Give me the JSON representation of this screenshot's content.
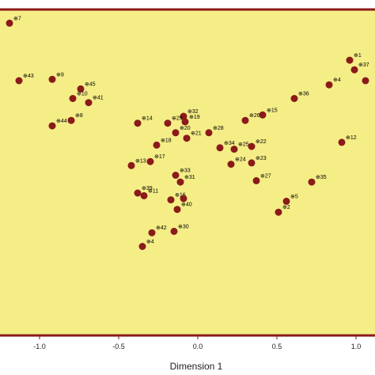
{
  "colors": {
    "plot_background": "#f5ee87",
    "border": "#8b1a1a",
    "marker": "#8b1a1a",
    "text": "#222222"
  },
  "chart_data": {
    "type": "scatter",
    "xlabel": "Dimension 1",
    "ylabel": "",
    "xlim": [
      -1.25,
      1.12
    ],
    "ylim": [
      -1.28,
      1.1
    ],
    "x_ticks": [
      -1.0,
      -0.5,
      0.0,
      0.5,
      1.0
    ],
    "x_tick_labels": [
      "-1.0",
      "-0.5",
      "0.0",
      "0.5",
      "1.0"
    ],
    "grid": false,
    "legend": "none",
    "points": [
      {
        "label": "7",
        "x": -1.19,
        "y": 1.0
      },
      {
        "label": "1",
        "x": 0.96,
        "y": 0.73
      },
      {
        "label": "37",
        "x": 0.99,
        "y": 0.66
      },
      {
        "label": "43",
        "x": -1.13,
        "y": 0.58
      },
      {
        "label": "9",
        "x": -0.92,
        "y": 0.59
      },
      {
        "label": "45",
        "x": -0.74,
        "y": 0.52
      },
      {
        "label": "10",
        "x": -0.79,
        "y": 0.45
      },
      {
        "label": "41",
        "x": -0.69,
        "y": 0.42
      },
      {
        "label": "4",
        "x": 0.83,
        "y": 0.55
      },
      {
        "label": "",
        "x": 1.06,
        "y": 0.58
      },
      {
        "label": "36",
        "x": 0.61,
        "y": 0.45
      },
      {
        "label": "8",
        "x": -0.8,
        "y": 0.29
      },
      {
        "label": "44",
        "x": -0.92,
        "y": 0.25
      },
      {
        "label": "15",
        "x": 0.41,
        "y": 0.33
      },
      {
        "label": "26",
        "x": 0.3,
        "y": 0.29
      },
      {
        "label": "32",
        "x": -0.09,
        "y": 0.32
      },
      {
        "label": "14",
        "x": -0.38,
        "y": 0.27
      },
      {
        "label": "29",
        "x": -0.19,
        "y": 0.27
      },
      {
        "label": "19",
        "x": -0.08,
        "y": 0.28
      },
      {
        "label": "28",
        "x": 0.07,
        "y": 0.2
      },
      {
        "label": "20",
        "x": -0.14,
        "y": 0.2
      },
      {
        "label": "21",
        "x": -0.07,
        "y": 0.16
      },
      {
        "label": "12",
        "x": 0.91,
        "y": 0.13
      },
      {
        "label": "18",
        "x": -0.26,
        "y": 0.11
      },
      {
        "label": "34",
        "x": 0.14,
        "y": 0.09
      },
      {
        "label": "25",
        "x": 0.23,
        "y": 0.08
      },
      {
        "label": "22",
        "x": 0.34,
        "y": 0.1
      },
      {
        "label": "17",
        "x": -0.3,
        "y": -0.01
      },
      {
        "label": "13",
        "x": -0.42,
        "y": -0.04
      },
      {
        "label": "24",
        "x": 0.21,
        "y": -0.03
      },
      {
        "label": "23",
        "x": 0.34,
        "y": -0.02
      },
      {
        "label": "33",
        "x": -0.14,
        "y": -0.11
      },
      {
        "label": "31",
        "x": -0.11,
        "y": -0.16
      },
      {
        "label": "27",
        "x": 0.37,
        "y": -0.15
      },
      {
        "label": "35",
        "x": 0.72,
        "y": -0.16
      },
      {
        "label": "39",
        "x": -0.38,
        "y": -0.24
      },
      {
        "label": "11",
        "x": -0.34,
        "y": -0.26
      },
      {
        "label": "16",
        "x": -0.17,
        "y": -0.29
      },
      {
        "label": "",
        "x": -0.09,
        "y": -0.28
      },
      {
        "label": "40",
        "x": -0.13,
        "y": -0.36
      },
      {
        "label": "5",
        "x": 0.56,
        "y": -0.3
      },
      {
        "label": "2",
        "x": 0.51,
        "y": -0.38
      },
      {
        "label": "42",
        "x": -0.29,
        "y": -0.53
      },
      {
        "label": "30",
        "x": -0.15,
        "y": -0.52
      },
      {
        "label": "4",
        "x": -0.35,
        "y": -0.63
      }
    ]
  }
}
